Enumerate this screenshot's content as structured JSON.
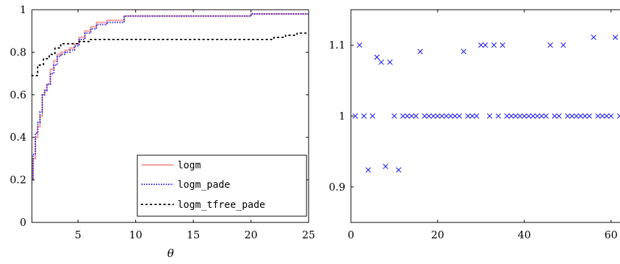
{
  "chart_data": [
    {
      "type": "line",
      "xlabel": "θ",
      "ylabel": "",
      "xlim": [
        1,
        25
      ],
      "ylim": [
        0,
        1
      ],
      "xticks": [
        5,
        10,
        15,
        20,
        25
      ],
      "yticks": [
        0,
        0.2,
        0.4,
        0.6,
        0.8,
        1
      ],
      "ytick_labels": [
        "0",
        "0.2",
        "0.4",
        "0.6",
        "0.8",
        "1"
      ],
      "grid": false,
      "legend_position": "bottom-right",
      "series": [
        {
          "name": "logm",
          "color": "#f4a0a0",
          "style": "solid",
          "x": [
            1,
            1.1,
            1.3,
            1.5,
            1.7,
            1.9,
            2.1,
            2.3,
            2.6,
            2.9,
            3.2,
            3.5,
            3.9,
            4.3,
            4.7,
            5.1,
            5.6,
            6.1,
            6.6,
            7.5,
            9,
            12,
            15,
            19.9,
            20,
            25
          ],
          "y": [
            0.2,
            0.3,
            0.4,
            0.45,
            0.5,
            0.6,
            0.62,
            0.65,
            0.72,
            0.76,
            0.79,
            0.8,
            0.81,
            0.82,
            0.84,
            0.87,
            0.9,
            0.92,
            0.94,
            0.95,
            0.97,
            0.97,
            0.97,
            0.97,
            0.98,
            0.98
          ]
        },
        {
          "name": "logm_pade",
          "color": "#1a1ae6",
          "style": "dotted",
          "x": [
            1,
            1.1,
            1.3,
            1.5,
            1.7,
            1.9,
            2.1,
            2.3,
            2.6,
            2.9,
            3.2,
            3.5,
            3.9,
            4.3,
            4.7,
            5.1,
            5.6,
            6.1,
            6.6,
            7.5,
            9,
            12,
            15,
            19.9,
            20,
            25
          ],
          "y": [
            0.2,
            0.32,
            0.42,
            0.47,
            0.52,
            0.6,
            0.62,
            0.65,
            0.7,
            0.74,
            0.78,
            0.79,
            0.8,
            0.81,
            0.83,
            0.86,
            0.89,
            0.91,
            0.93,
            0.94,
            0.97,
            0.97,
            0.97,
            0.97,
            0.98,
            0.98
          ]
        },
        {
          "name": "logm_tfree_pade",
          "color": "#000000",
          "style": "dotted-sparse",
          "x": [
            1,
            1.5,
            2,
            2.5,
            3,
            3.5,
            4,
            5,
            6,
            7,
            10,
            15,
            20,
            21.5,
            22,
            23,
            24,
            25
          ],
          "y": [
            0.69,
            0.74,
            0.77,
            0.79,
            0.82,
            0.84,
            0.84,
            0.85,
            0.86,
            0.86,
            0.86,
            0.86,
            0.86,
            0.86,
            0.87,
            0.88,
            0.89,
            0.89
          ]
        }
      ]
    },
    {
      "type": "scatter",
      "xlabel": "",
      "ylabel": "",
      "xlim": [
        0,
        64
      ],
      "ylim": [
        0.85,
        1.15
      ],
      "xticks": [
        0,
        20,
        40,
        60
      ],
      "yticks": [
        0.9,
        1,
        1.1
      ],
      "ytick_labels": [
        "0.9",
        "1",
        "1.1"
      ],
      "grid": false,
      "marker": "x",
      "series": [
        {
          "color": "#1a1ae6",
          "x": [
            1,
            2,
            3,
            4,
            5,
            6,
            7,
            8,
            9,
            10,
            11,
            12,
            13,
            14,
            15,
            16,
            17,
            18,
            19,
            20,
            21,
            22,
            23,
            24,
            25,
            26,
            27,
            28,
            29,
            30,
            31,
            32,
            33,
            34,
            35,
            36,
            37,
            38,
            39,
            40,
            41,
            42,
            43,
            44,
            45,
            46,
            47,
            48,
            49,
            50,
            51,
            52,
            53,
            54,
            55,
            56,
            57,
            58,
            59,
            60,
            61,
            62,
            63
          ],
          "y": [
            1,
            1.1,
            1,
            0.924,
            1,
            1.083,
            1.076,
            0.929,
            1.076,
            1,
            0.924,
            1,
            1,
            1,
            1,
            1.091,
            1,
            1,
            1,
            1,
            1,
            1,
            1,
            1,
            1,
            1.091,
            1,
            1,
            1,
            1.1,
            1.1,
            1,
            1.1,
            1,
            1.1,
            1,
            1,
            1,
            1,
            1,
            1,
            1,
            1,
            1,
            1,
            1.1,
            1,
            1,
            1.1,
            1,
            1,
            1,
            1,
            1,
            1,
            1.111,
            1,
            1,
            1,
            1,
            1.111,
            1,
            1
          ]
        }
      ]
    }
  ]
}
